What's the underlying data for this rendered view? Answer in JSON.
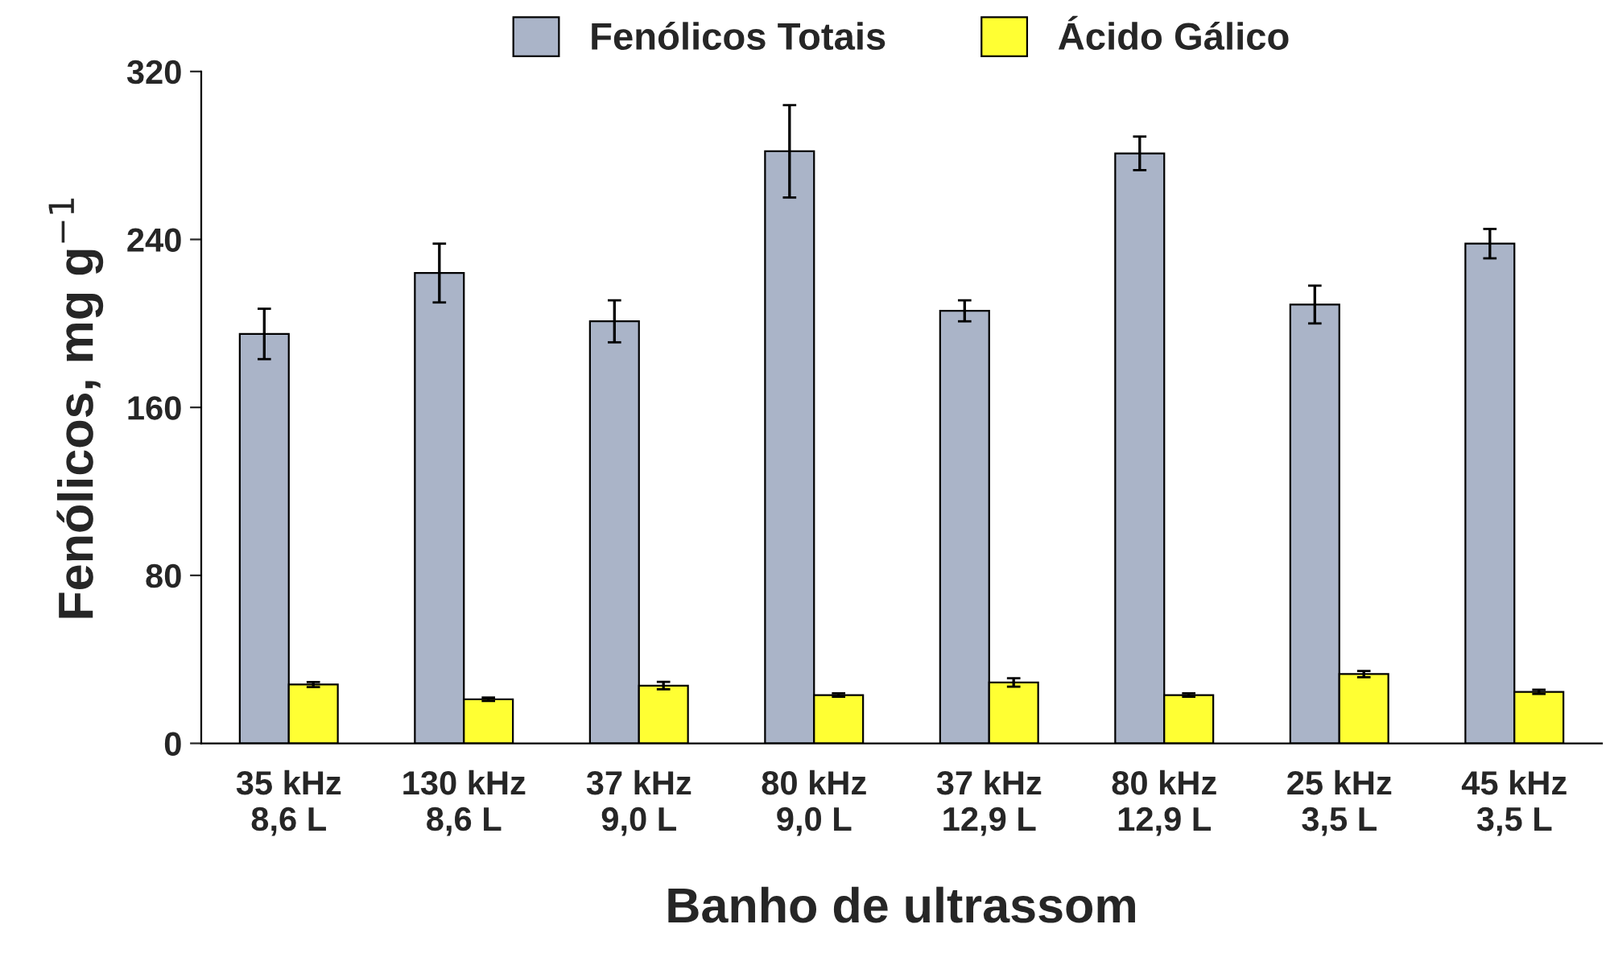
{
  "chart_data": {
    "type": "bar",
    "xlabel": "Banho de ultrassom",
    "ylabel": "Fenólicos, mg g$^{−1}$",
    "categories": [
      "35 kHz\n8,6 L",
      "130 kHz\n8,6 L",
      "37 kHz\n9,0 L",
      "80 kHz\n9,0 L",
      "37 kHz\n12,9 L",
      "80 kHz\n12,9 L",
      "25 kHz\n3,5 L",
      "45 kHz\n3,5 L"
    ],
    "series": [
      {
        "name": "Fenólicos Totais",
        "color": "#aab4c8",
        "values": [
          195,
          224,
          201,
          282,
          206,
          281,
          209,
          238
        ],
        "errors": [
          12,
          14,
          10,
          22,
          5,
          8,
          9,
          7
        ]
      },
      {
        "name": "Ácido Gálico",
        "color": "#ffff33",
        "values": [
          28,
          21,
          27.5,
          23,
          29,
          23,
          33,
          24.5
        ],
        "errors": [
          1.2,
          0.8,
          1.8,
          0.8,
          2,
          0.8,
          1.5,
          1
        ]
      }
    ],
    "ylim": [
      0,
      320
    ],
    "yticks": [
      0,
      80,
      160,
      240,
      320
    ],
    "grid": false,
    "legend": "top"
  }
}
